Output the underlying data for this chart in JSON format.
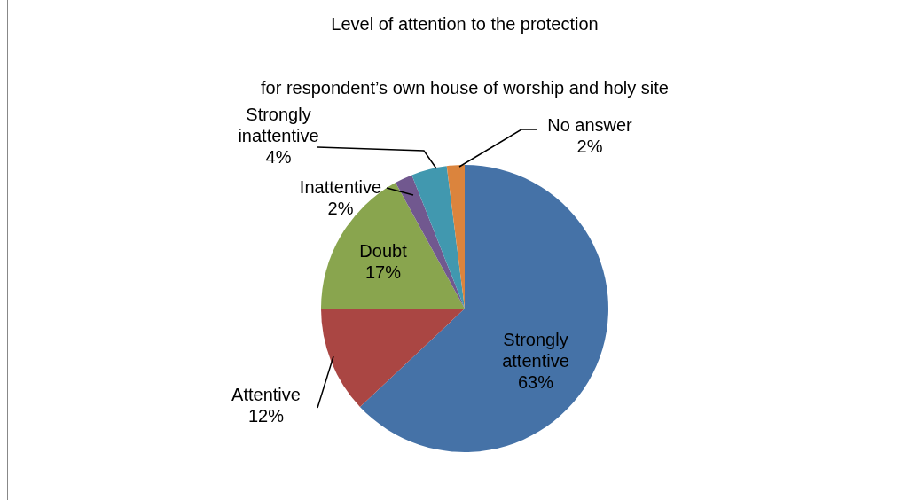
{
  "chart_data": {
    "type": "pie",
    "title": "Level of attention to the protection",
    "subtitle": "for respondent’s own house of worship and holy site",
    "categories": [
      "Strongly attentive",
      "Attentive",
      "Doubt",
      "Inattentive",
      "Strongly inattentive",
      "No answer"
    ],
    "values": [
      63,
      12,
      17,
      2,
      4,
      2
    ],
    "value_labels": [
      "63%",
      "12%",
      "17%",
      "2%",
      "4%",
      "2%"
    ],
    "colors": [
      "#4572a7",
      "#aa4643",
      "#89a54e",
      "#71588f",
      "#4198af",
      "#db843d"
    ]
  }
}
